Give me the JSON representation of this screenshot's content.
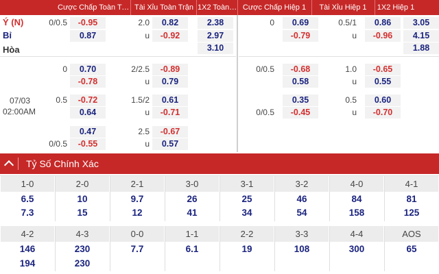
{
  "header": {
    "cols": [
      "Cược Chấp Toàn Trận",
      "Tài Xỉu Toàn Trận",
      "1X2 Toàn Trận",
      "Cược Chấp Hiệp 1",
      "Tài Xỉu Hiệp 1",
      "1X2 Hiệp 1"
    ]
  },
  "teams": {
    "home": "Ý (N)",
    "away": "Bỉ",
    "draw": "Hòa"
  },
  "match_date": "07/03",
  "match_time": "02:00AM",
  "rows": [
    {
      "ft_hcap": "0/0.5",
      "ft_hcap_v": "-0.95",
      "ft_ou": "2.0",
      "ft_ou_v": "0.82",
      "ft_1x2": "2.38",
      "h1_hcap": "0",
      "h1_hcap_v": "0.69",
      "h1_ou": "0.5/1",
      "h1_ou_v": "0.86",
      "h1_1x2": "3.05"
    },
    {
      "ft_hcap_v": "0.87",
      "ft_ou": "u",
      "ft_ou_v": "-0.92",
      "ft_1x2": "2.97",
      "h1_hcap_v": "-0.79",
      "h1_ou": "u",
      "h1_ou_v": "-0.96",
      "h1_1x2": "4.15"
    },
    {
      "ft_1x2": "3.10",
      "h1_1x2": "1.88"
    },
    {
      "ft_hcap": "0",
      "ft_hcap_v": "0.70",
      "ft_ou": "2/2.5",
      "ft_ou_v": "-0.89",
      "h1_hcap": "0/0.5",
      "h1_hcap_v": "-0.68",
      "h1_ou": "1.0",
      "h1_ou_v": "-0.65"
    },
    {
      "ft_hcap_v": "-0.78",
      "ft_ou": "u",
      "ft_ou_v": "0.79",
      "h1_hcap_v": "0.58",
      "h1_ou": "u",
      "h1_ou_v": "0.55"
    },
    {
      "ft_hcap": "0.5",
      "ft_hcap_v": "-0.72",
      "ft_ou": "1.5/2",
      "ft_ou_v": "0.61",
      "h1_hcap_v": "0.35",
      "h1_ou": "0.5",
      "h1_ou_v": "0.60"
    },
    {
      "ft_hcap_v": "0.64",
      "ft_ou": "u",
      "ft_ou_v": "-0.71",
      "h1_hcap": "0/0.5",
      "h1_hcap_v": "-0.45",
      "h1_ou": "u",
      "h1_ou_v": "-0.70"
    },
    {
      "ft_hcap_v": "0.47",
      "ft_ou": "2.5",
      "ft_ou_v": "-0.67"
    },
    {
      "ft_hcap": "0/0.5",
      "ft_hcap_v": "-0.55",
      "ft_ou": "u",
      "ft_ou_v": "0.57"
    }
  ],
  "section": {
    "title": "Tỷ Số Chính Xác"
  },
  "scores_top": [
    {
      "label": "1-0",
      "v1": "6.5",
      "v2": "7.3"
    },
    {
      "label": "2-0",
      "v1": "10",
      "v2": "15"
    },
    {
      "label": "2-1",
      "v1": "9.7",
      "v2": "12"
    },
    {
      "label": "3-0",
      "v1": "26",
      "v2": "41"
    },
    {
      "label": "3-1",
      "v1": "25",
      "v2": "34"
    },
    {
      "label": "3-2",
      "v1": "46",
      "v2": "54"
    },
    {
      "label": "4-0",
      "v1": "84",
      "v2": "158"
    },
    {
      "label": "4-1",
      "v1": "81",
      "v2": "125"
    }
  ],
  "scores_bottom": [
    {
      "label": "4-2",
      "v1": "146",
      "v2": "194"
    },
    {
      "label": "4-3",
      "v1": "230",
      "v2": "230"
    },
    {
      "label": "0-0",
      "v1": "7.7"
    },
    {
      "label": "1-1",
      "v1": "6.1"
    },
    {
      "label": "2-2",
      "v1": "19"
    },
    {
      "label": "3-3",
      "v1": "108"
    },
    {
      "label": "4-4",
      "v1": "300"
    },
    {
      "label": "AOS",
      "v1": "65"
    }
  ]
}
